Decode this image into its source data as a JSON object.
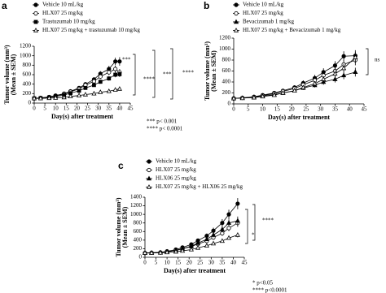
{
  "chart_data": [
    {
      "type": "line",
      "panel": "a",
      "y_label": [
        "Tumor volume (mm³)",
        "(Mean ± SEM)"
      ],
      "x_label": "Day(s) after treatment",
      "x": [
        0,
        3,
        7,
        10,
        14,
        17,
        21,
        24,
        28,
        31,
        35,
        38,
        40
      ],
      "series": [
        {
          "name": "Vehicle 10 mL/kg",
          "color": "#000",
          "marker": "circle",
          "values": [
            100,
            110,
            130,
            160,
            200,
            250,
            320,
            400,
            500,
            620,
            720,
            880,
            880
          ],
          "errors": [
            10,
            10,
            12,
            15,
            20,
            25,
            30,
            35,
            45,
            55,
            65,
            80,
            90
          ]
        },
        {
          "name": "HLX07 25 mg/kg",
          "color": "#000",
          "marker": "open-circle",
          "values": [
            100,
            105,
            120,
            150,
            190,
            240,
            300,
            380,
            460,
            560,
            650,
            720,
            650
          ],
          "errors": [
            10,
            10,
            12,
            15,
            18,
            22,
            28,
            35,
            40,
            50,
            60,
            70,
            70
          ]
        },
        {
          "name": "Trastuzumab 10 mg/kg",
          "color": "#000",
          "marker": "square",
          "values": [
            100,
            105,
            120,
            140,
            170,
            210,
            260,
            320,
            380,
            450,
            520,
            600,
            610
          ],
          "errors": [
            10,
            10,
            10,
            12,
            15,
            20,
            25,
            30,
            35,
            40,
            45,
            55,
            60
          ]
        },
        {
          "name": "HLX07 25 mg/kg + trastuzumab 10 mg/kg",
          "color": "#000",
          "marker": "open-triangle",
          "values": [
            100,
            100,
            105,
            110,
            120,
            140,
            160,
            180,
            200,
            230,
            250,
            280,
            300
          ],
          "errors": [
            8,
            8,
            8,
            10,
            10,
            12,
            15,
            18,
            20,
            22,
            25,
            28,
            30
          ]
        }
      ],
      "annotations": [
        "***",
        "****",
        "***",
        "****",
        "*** p< 0.001",
        "**** p< 0.0001"
      ],
      "xlim": [
        0,
        45
      ],
      "xticks": [
        0,
        5,
        10,
        15,
        20,
        25,
        30,
        35,
        40,
        45
      ],
      "ylim": [
        0,
        1200
      ],
      "yticks": [
        0,
        200,
        400,
        600,
        800,
        1000,
        1200
      ]
    },
    {
      "type": "line",
      "panel": "b",
      "y_label": [
        "Tumor volume (mm³)",
        "(Mean ± SEM)"
      ],
      "x_label": "Day(s) after treatment",
      "x": [
        0,
        3,
        7,
        10,
        14,
        17,
        21,
        24,
        28,
        31,
        35,
        38,
        42
      ],
      "series": [
        {
          "name": "Vehicle 10 mL/kg",
          "color": "#000",
          "marker": "circle",
          "values": [
            100,
            110,
            130,
            160,
            200,
            240,
            300,
            380,
            470,
            580,
            700,
            870,
            880
          ],
          "errors": [
            10,
            12,
            15,
            20,
            25,
            30,
            40,
            50,
            60,
            70,
            80,
            90,
            100
          ]
        },
        {
          "name": "HLX07 25 mg/kg",
          "color": "#000",
          "marker": "open-circle",
          "values": [
            100,
            110,
            125,
            150,
            190,
            230,
            280,
            350,
            430,
            520,
            600,
            720,
            800
          ],
          "errors": [
            10,
            12,
            15,
            18,
            22,
            28,
            35,
            45,
            55,
            65,
            75,
            85,
            95
          ]
        },
        {
          "name": "Bevacizumab 1 mg/kg",
          "color": "#000",
          "marker": "triangle",
          "values": [
            100,
            105,
            120,
            140,
            170,
            200,
            240,
            290,
            340,
            400,
            450,
            520,
            580
          ],
          "errors": [
            10,
            10,
            12,
            15,
            18,
            22,
            28,
            35,
            40,
            50,
            60,
            70,
            80
          ]
        },
        {
          "name": "HLX07 25 mg/kg + Bevacizumab 1 mg/kg",
          "color": "#000",
          "marker": "open-triangle",
          "values": [
            100,
            105,
            115,
            135,
            160,
            200,
            240,
            300,
            370,
            450,
            550,
            650,
            850
          ],
          "errors": [
            10,
            10,
            12,
            15,
            18,
            22,
            28,
            35,
            45,
            55,
            65,
            80,
            100
          ]
        }
      ],
      "annotations": [
        "ns"
      ],
      "xlim": [
        0,
        45
      ],
      "xticks": [
        0,
        5,
        10,
        15,
        20,
        25,
        30,
        35,
        40,
        45
      ],
      "ylim": [
        0,
        1200
      ],
      "yticks": [
        0,
        200,
        400,
        600,
        800,
        1000,
        1200
      ]
    },
    {
      "type": "line",
      "panel": "c",
      "y_label": [
        "Tumor volume (mm³)",
        "(Mean ± SEM)"
      ],
      "x_label": "Day(s) after treatment",
      "x": [
        0,
        3,
        7,
        10,
        14,
        17,
        21,
        24,
        28,
        31,
        35,
        38,
        42
      ],
      "series": [
        {
          "name": "Vehicle 10 mL/kg",
          "color": "#000",
          "marker": "circle",
          "values": [
            100,
            105,
            115,
            140,
            180,
            230,
            300,
            390,
            500,
            620,
            800,
            1000,
            1250
          ],
          "errors": [
            10,
            10,
            12,
            15,
            20,
            25,
            35,
            45,
            55,
            70,
            90,
            110,
            130
          ]
        },
        {
          "name": "HLX07 25 mg/kg",
          "color": "#000",
          "marker": "open-circle",
          "values": [
            100,
            105,
            110,
            130,
            160,
            200,
            250,
            310,
            380,
            460,
            560,
            680,
            800
          ],
          "errors": [
            10,
            10,
            12,
            14,
            18,
            22,
            28,
            35,
            40,
            50,
            60,
            70,
            90
          ]
        },
        {
          "name": "HLX06 25 mg/kg",
          "color": "#000",
          "marker": "triangle",
          "values": [
            100,
            105,
            110,
            130,
            160,
            200,
            260,
            330,
            420,
            520,
            650,
            800,
            850
          ],
          "errors": [
            10,
            10,
            12,
            14,
            18,
            22,
            28,
            35,
            45,
            55,
            70,
            85,
            100
          ]
        },
        {
          "name": "HLX07 25 mg/kg + HLX06 25 mg/kg",
          "color": "#000",
          "marker": "open-triangle",
          "values": [
            100,
            100,
            105,
            115,
            130,
            150,
            180,
            220,
            270,
            320,
            380,
            450,
            520
          ],
          "errors": [
            8,
            8,
            10,
            10,
            12,
            15,
            18,
            22,
            28,
            32,
            38,
            45,
            55
          ]
        }
      ],
      "annotations": [
        "****",
        "*",
        "* p<0.05",
        "**** p<0.0001"
      ],
      "xlim": [
        0,
        45
      ],
      "xticks": [
        0,
        5,
        10,
        15,
        20,
        25,
        30,
        35,
        40,
        45
      ],
      "ylim": [
        0,
        1400
      ],
      "yticks": [
        0,
        200,
        400,
        600,
        800,
        1000,
        1200,
        1400
      ]
    }
  ]
}
